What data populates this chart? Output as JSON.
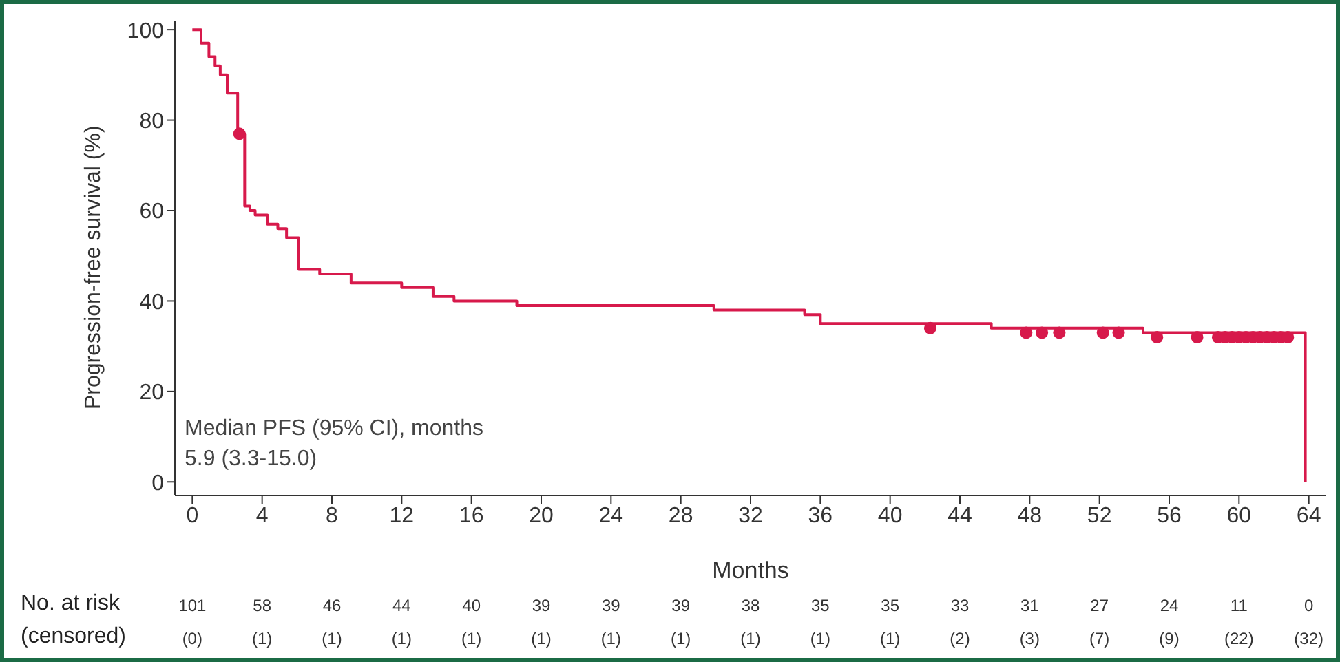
{
  "chart_data": {
    "type": "step",
    "xlabel": "Months",
    "ylabel": "Progression-free survival (%)",
    "xlim": [
      -1,
      65
    ],
    "xticks": [
      0,
      4,
      8,
      12,
      16,
      20,
      24,
      28,
      32,
      36,
      40,
      44,
      48,
      52,
      56,
      60,
      64
    ],
    "ylim": [
      -3,
      102
    ],
    "yticks": [
      0,
      20,
      40,
      60,
      80,
      100
    ],
    "series": [
      {
        "color": "#d7194b",
        "marker": "none",
        "x": [
          0,
          0.5,
          0.95,
          1.3,
          1.6,
          2.0,
          2.6,
          2.8,
          3.0,
          3.3,
          3.6,
          4.3,
          4.9,
          5.4,
          6.1,
          7.3,
          9.1,
          12.0,
          13.8,
          15.0,
          18.6,
          29.9,
          35.1,
          36.0,
          45.8,
          54.5,
          63.8,
          63.8
        ],
        "values": [
          100,
          97,
          94,
          92,
          90,
          86,
          77,
          77,
          61,
          60,
          59,
          57,
          56,
          54,
          47,
          46,
          44,
          43,
          41,
          40,
          39,
          38,
          37,
          35,
          34,
          33,
          32,
          0
        ]
      },
      {
        "type": "scatter",
        "color": "#d7194b",
        "marker": "circle",
        "x": [
          2.7,
          42.3,
          47.8,
          48.7,
          49.7,
          52.2,
          53.1,
          55.3,
          57.6,
          58.8,
          59.2,
          59.6,
          60.0,
          60.4,
          60.8,
          61.2,
          61.6,
          62.0,
          62.4,
          62.8
        ],
        "values": [
          77,
          34,
          33,
          33,
          33,
          33,
          33,
          32,
          32,
          32,
          32,
          32,
          32,
          32,
          32,
          32,
          32,
          32,
          32,
          32
        ]
      }
    ],
    "annotations": [
      "Median PFS (95% CI), months",
      "5.9 (3.3-15.0)",
      "No. at risk",
      "101",
      "58",
      "46",
      "44",
      "40",
      "39",
      "39",
      "39",
      "38",
      "35",
      "35",
      "33",
      "31",
      "27",
      "24",
      "11",
      "0",
      "(censored)",
      "(0)",
      "(1)",
      "(1)",
      "(1)",
      "(1)",
      "(1)",
      "(1)",
      "(1)",
      "(1)",
      "(1)",
      "(1)",
      "(2)",
      "(3)",
      "(7)",
      "(9)",
      "(22)",
      "(32)"
    ]
  }
}
